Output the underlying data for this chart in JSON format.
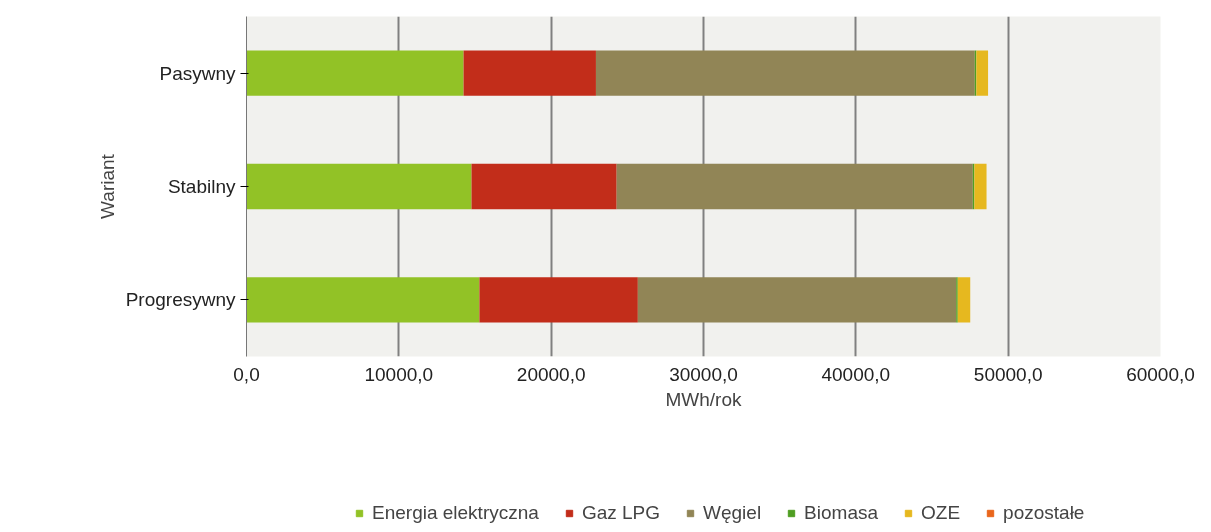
{
  "chart_data": {
    "type": "bar",
    "orientation": "horizontal",
    "stacked": true,
    "xlabel": "MWh/rok",
    "ylabel": "Wariant",
    "categories": [
      "Pasywny",
      "Stabilny",
      "Progresywny"
    ],
    "series": [
      {
        "name": "Energia elektryczna",
        "color": "#92c226",
        "values": [
          14250,
          14770,
          15290
        ]
      },
      {
        "name": "Gaz LPG",
        "color": "#c22d1a",
        "values": [
          8690,
          9530,
          10400
        ]
      },
      {
        "name": "Węgiel",
        "color": "#918556",
        "values": [
          24870,
          23380,
          20900
        ]
      },
      {
        "name": "Biomasa",
        "color": "#4f9e22",
        "values": [
          100,
          100,
          100
        ]
      },
      {
        "name": "OZE",
        "color": "#e6b81f",
        "values": [
          770,
          800,
          820
        ]
      },
      {
        "name": "pozostałe",
        "color": "#e9661c",
        "values": [
          0,
          0,
          0
        ]
      }
    ],
    "xlim": [
      0,
      60000
    ],
    "xticks": [
      {
        "value": 0,
        "label": "0,0"
      },
      {
        "value": 10000,
        "label": "10000,0"
      },
      {
        "value": 20000,
        "label": "20000,0"
      },
      {
        "value": 30000,
        "label": "30000,0"
      },
      {
        "value": 40000,
        "label": "40000,0"
      },
      {
        "value": 50000,
        "label": "50000,0"
      },
      {
        "value": 60000,
        "label": "60000,0"
      }
    ],
    "grid": "x",
    "legend": "bottom"
  }
}
